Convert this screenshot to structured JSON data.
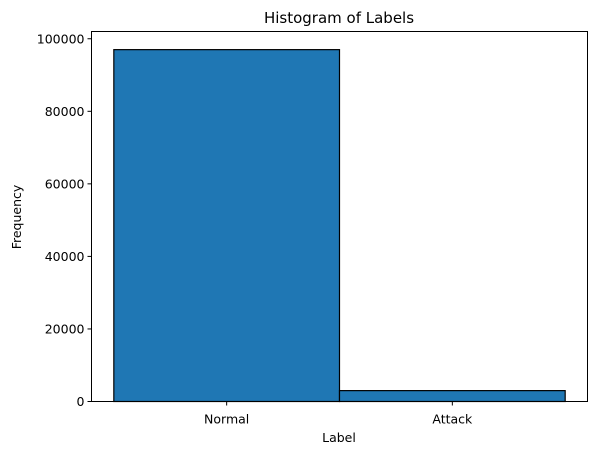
{
  "chart_data": {
    "type": "bar",
    "title": "Histogram of Labels",
    "xlabel": "Label",
    "ylabel": "Frequency",
    "categories": [
      "Normal",
      "Attack"
    ],
    "values": [
      97000,
      3000
    ],
    "ylim": [
      0,
      102000
    ],
    "yticks": [
      0,
      20000,
      40000,
      60000,
      80000,
      100000
    ],
    "ytick_labels": [
      "0",
      "20000",
      "40000",
      "60000",
      "80000",
      "100000"
    ],
    "grid": false,
    "bar_color": "#1f77b4",
    "edge_color": "#000000"
  }
}
